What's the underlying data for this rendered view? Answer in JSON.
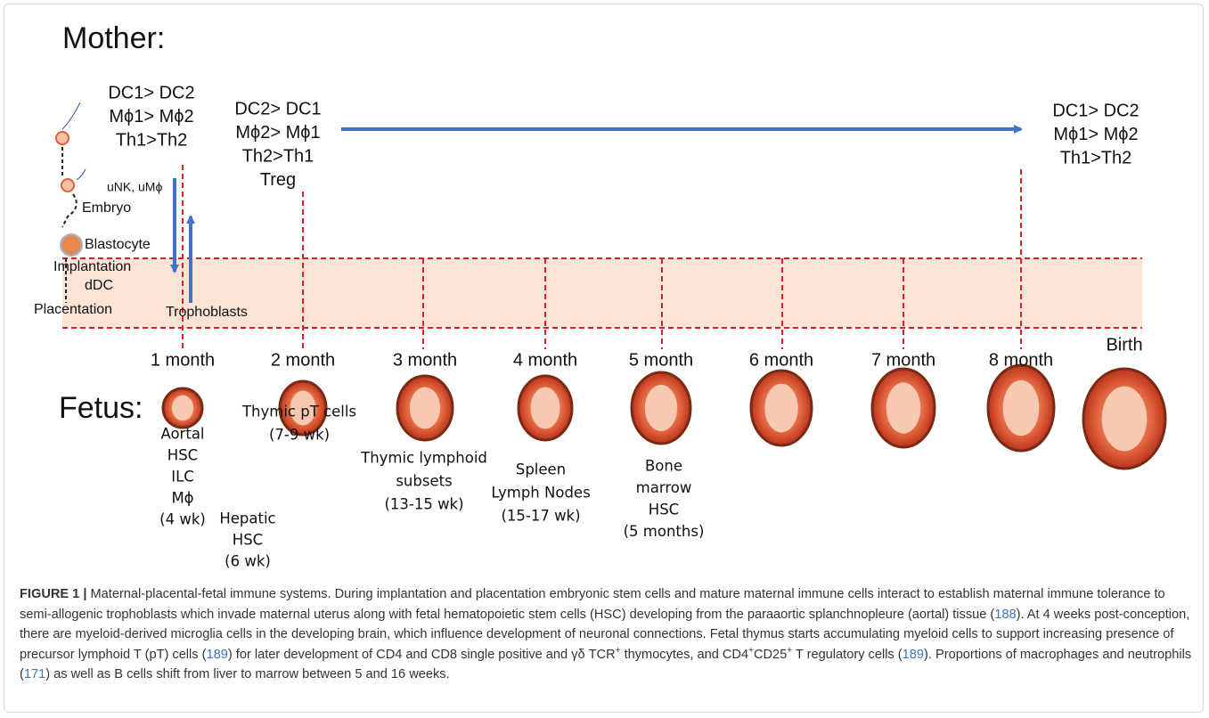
{
  "figure": {
    "mother_label": "Mother:",
    "fetus_label": "Fetus:",
    "embryo_steps": [
      "Embryo",
      "Blastocyte",
      "Implantation",
      "dDC",
      "Placentation"
    ],
    "maternal_cells": "uNK, uMϕ",
    "trophoblasts": "Trophoblasts",
    "cytokine_profiles": [
      [
        "DC1> DC2",
        "Mϕ1> Mϕ2",
        "Th1>Th2"
      ],
      [
        "DC2> DC1",
        "Mϕ2> Mϕ1",
        "Th2>Th1",
        "Treg"
      ],
      [
        "DC1> DC2",
        "Mϕ1> Mϕ2",
        "Th1>Th2"
      ]
    ],
    "months": [
      "1 month",
      "2 month",
      "3 month",
      "4 month",
      "5 month",
      "6 month",
      "7 month",
      "8 month",
      "Birth"
    ],
    "fetal_events": [
      [
        "Aortal",
        "HSC",
        "ILC",
        "Mϕ",
        "(4 wk)"
      ],
      [
        "Hepatic",
        "HSC",
        "(6 wk)"
      ],
      [
        "Thymic pT cells",
        "(7-9 wk)"
      ],
      [
        "Thymic lymphoid",
        "subsets",
        "(13-15 wk)"
      ],
      [
        "Spleen",
        "Lymph Nodes",
        "(15-17 wk)"
      ],
      [
        "Bone",
        "marrow",
        "HSC",
        "(5 months)"
      ]
    ]
  },
  "caption": {
    "label": "FIGURE 1 |",
    "runs": [
      " Maternal-placental-fetal immune systems. During implantation and placentation embryonic stem cells and mature maternal immune cells interact to establish maternal immune tolerance to semi-allogenic trophoblasts which invade maternal uterus along with fetal hematopoietic stem cells (HSC) developing from the paraaortic splanchnopleure (aortal) tissue (",
      "188",
      "). At 4 weeks post-conception, there are myeloid-derived microglia cells in the developing brain, which influence development of neuronal connections. Fetal thymus starts accumulating myeloid cells to support increasing presence of precursor lymphoid T (pT) cells (",
      "189",
      ") for later development of CD4 and CD8 single positive and γδ TCR",
      "+",
      " thymocytes, and CD4",
      "+",
      "CD25",
      "+",
      " T regulatory cells (",
      "189",
      "). Proportions of macrophages and neutrophils (",
      "171",
      ") as well as B cells shift from liver to marrow between 5 and 16 weeks."
    ]
  }
}
